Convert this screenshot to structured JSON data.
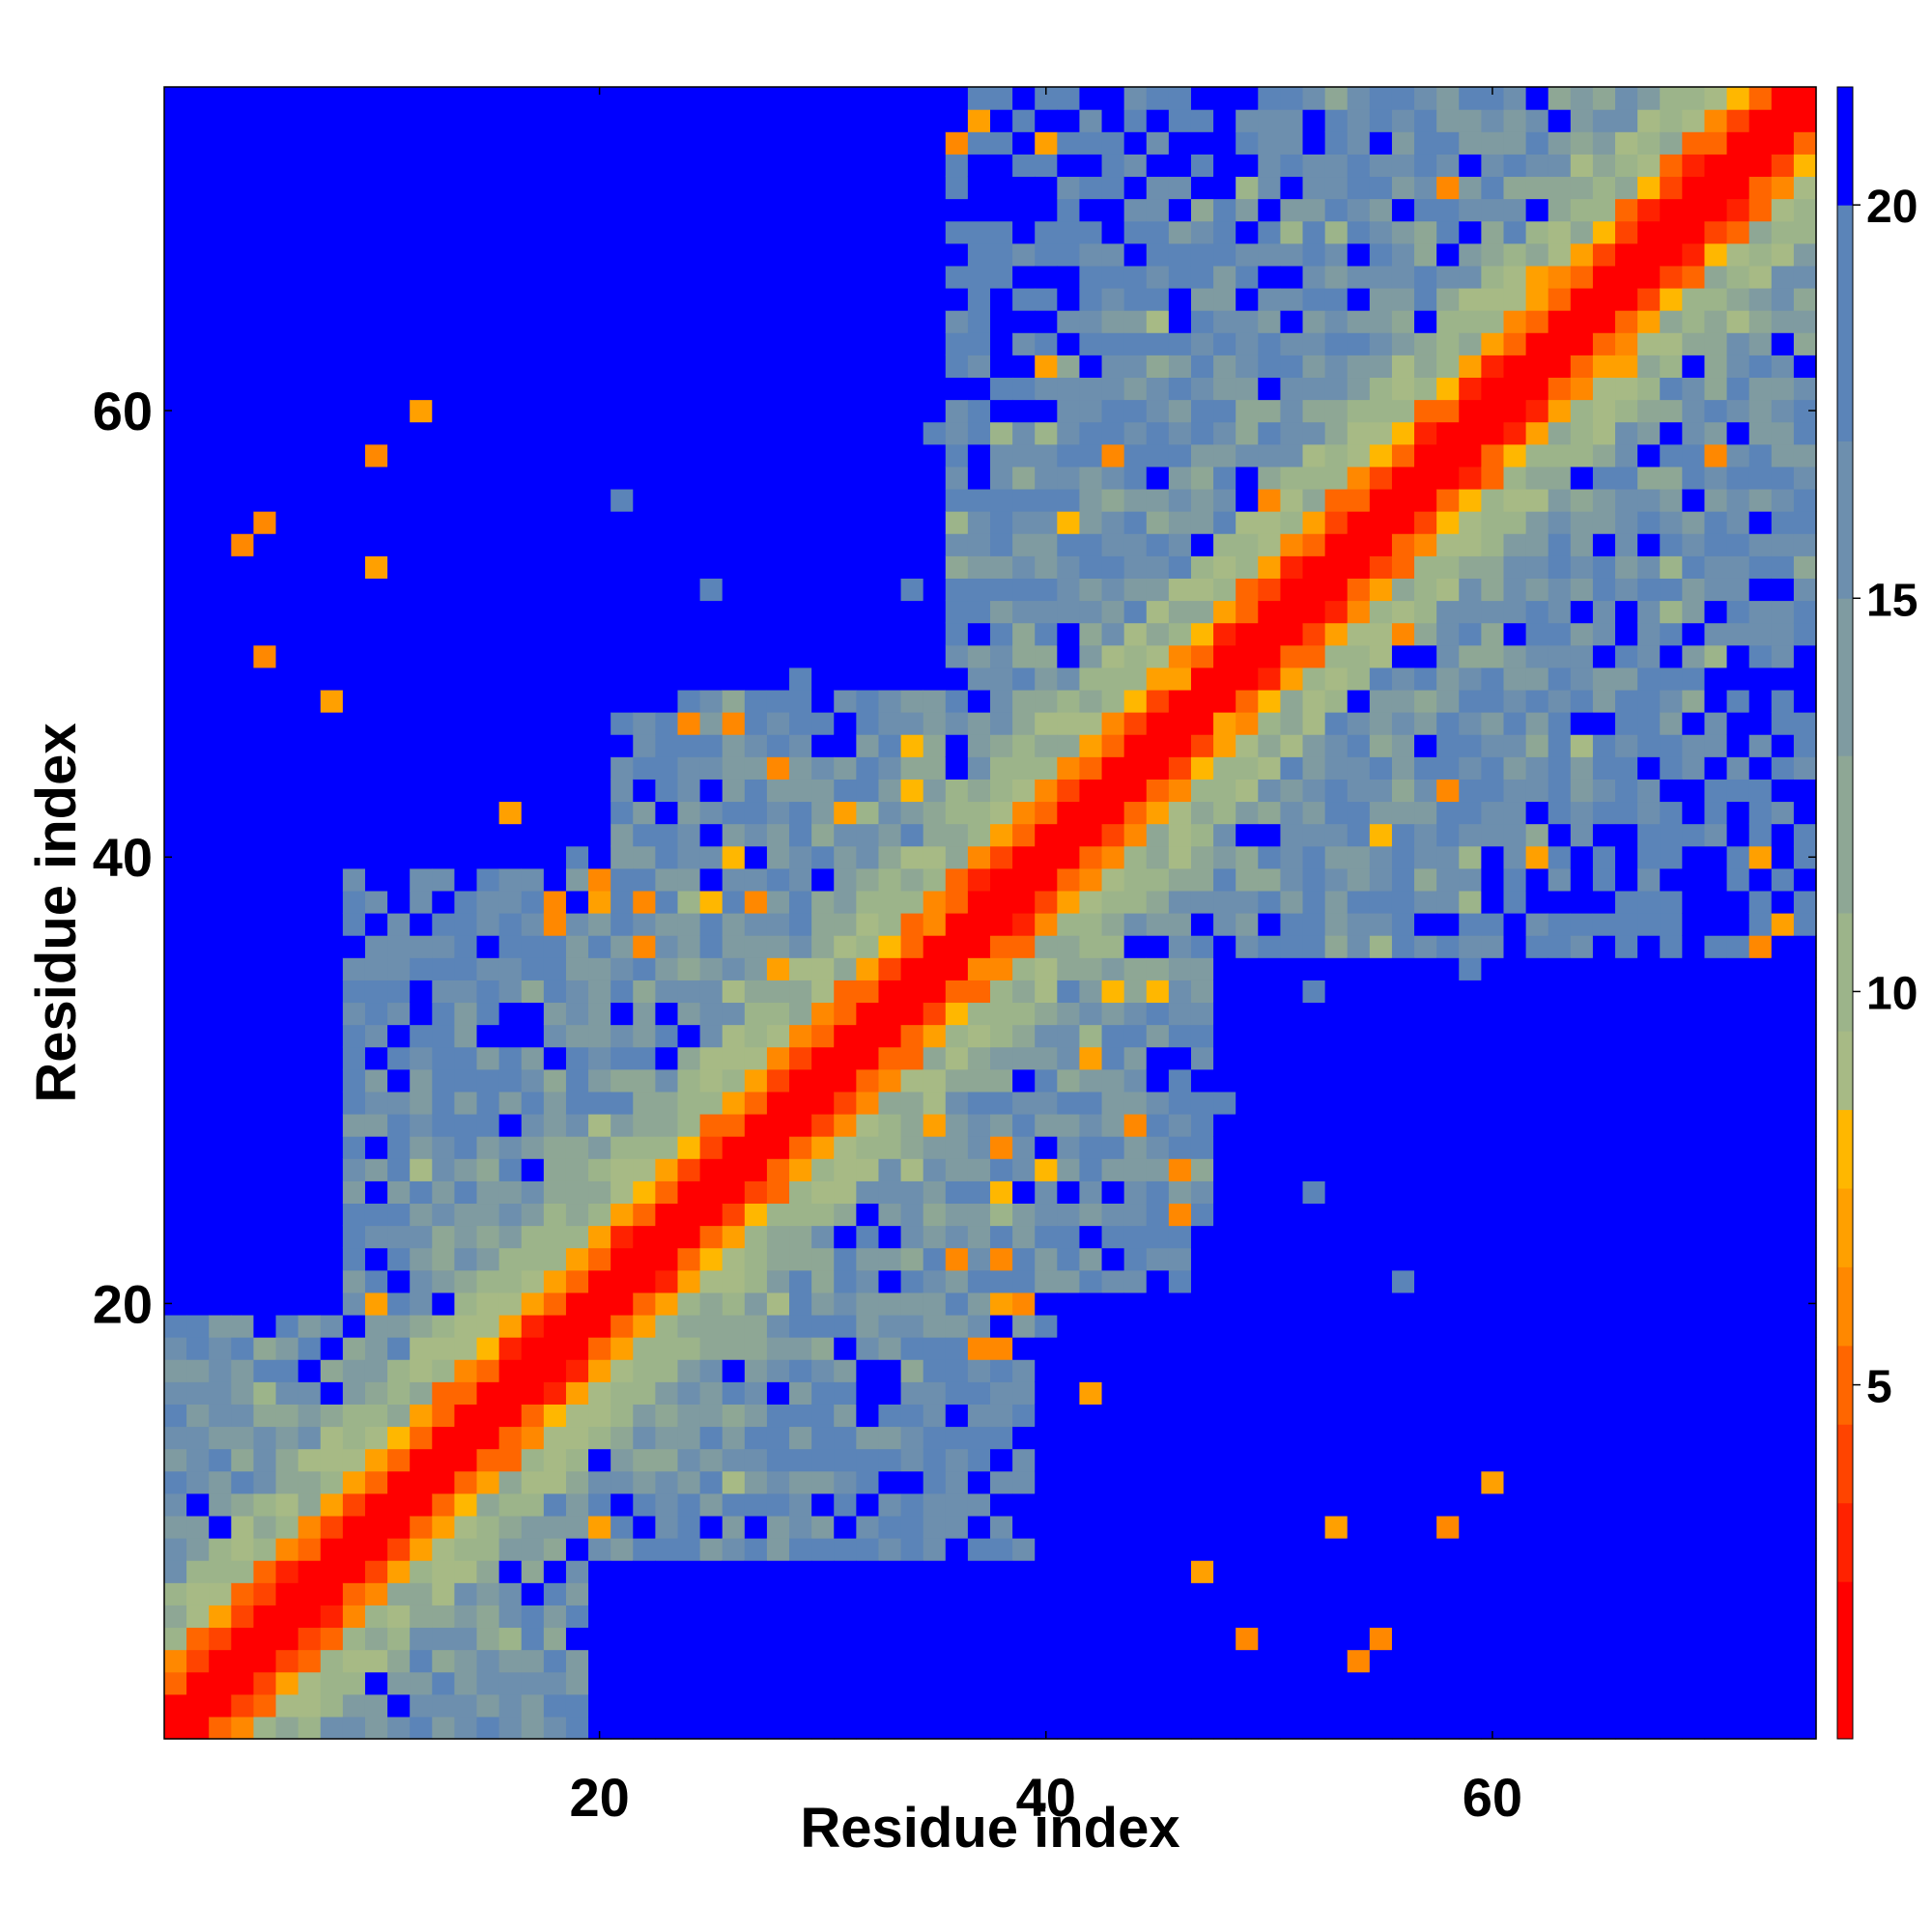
{
  "chart_data": {
    "type": "heatmap",
    "title": "",
    "xlabel": "Residue index",
    "ylabel": "Residue index",
    "n_residues": 74,
    "xlim": [
      1,
      74
    ],
    "ylim": [
      1,
      74
    ],
    "x_ticks": [
      20,
      40,
      60
    ],
    "y_ticks": [
      20,
      40,
      60
    ],
    "colorbar": {
      "ticks": [
        5,
        10,
        15,
        20
      ],
      "range": [
        0.5,
        21.5
      ],
      "bins": [
        {
          "upper": 2.5,
          "color": "#ff0000"
        },
        {
          "upper": 3.5,
          "color": "#ff2200"
        },
        {
          "upper": 4.5,
          "color": "#ff4400"
        },
        {
          "upper": 5.5,
          "color": "#ff6600"
        },
        {
          "upper": 6.5,
          "color": "#ff8800"
        },
        {
          "upper": 7.5,
          "color": "#ffa000"
        },
        {
          "upper": 8.5,
          "color": "#ffb700"
        },
        {
          "upper": 9.5,
          "color": "#a7ba85"
        },
        {
          "upper": 11,
          "color": "#9cb48a"
        },
        {
          "upper": 13,
          "color": "#8ea795"
        },
        {
          "upper": 15,
          "color": "#7f9ba1"
        },
        {
          "upper": 17,
          "color": "#6d8fae"
        },
        {
          "upper": 20,
          "color": "#5b84b8"
        },
        {
          "upper": 99,
          "color": "#0000ff"
        }
      ]
    },
    "description_of_values": "Pairwise residue distance matrix (symmetric). Diagonal and immediate neighbours ~0-4, blue (>20) for distant residue pairs; large blue blocks between residues ~48-74 vs 1-35.",
    "contacts": [
      [
        5,
        55
      ],
      [
        10,
        58
      ],
      [
        18,
        38
      ],
      [
        20,
        38
      ],
      [
        22,
        36
      ],
      [
        24,
        46
      ],
      [
        28,
        35
      ],
      [
        37,
        18
      ],
      [
        38,
        22
      ],
      [
        42,
        31
      ],
      [
        44,
        28
      ],
      [
        46,
        26
      ],
      [
        48,
        46
      ],
      [
        54,
        4
      ],
      [
        56,
        50
      ],
      [
        58,
        43
      ],
      [
        62,
        40
      ],
      [
        66,
        62
      ],
      [
        70,
        58
      ],
      [
        72,
        36
      ],
      [
        40,
        72
      ],
      [
        37,
        73
      ],
      [
        35,
        37
      ],
      [
        27,
        38
      ],
      [
        20,
        39
      ],
      [
        16,
        42
      ],
      [
        8,
        47
      ],
      [
        5,
        49
      ],
      [
        10,
        53
      ],
      [
        12,
        60
      ]
    ]
  }
}
